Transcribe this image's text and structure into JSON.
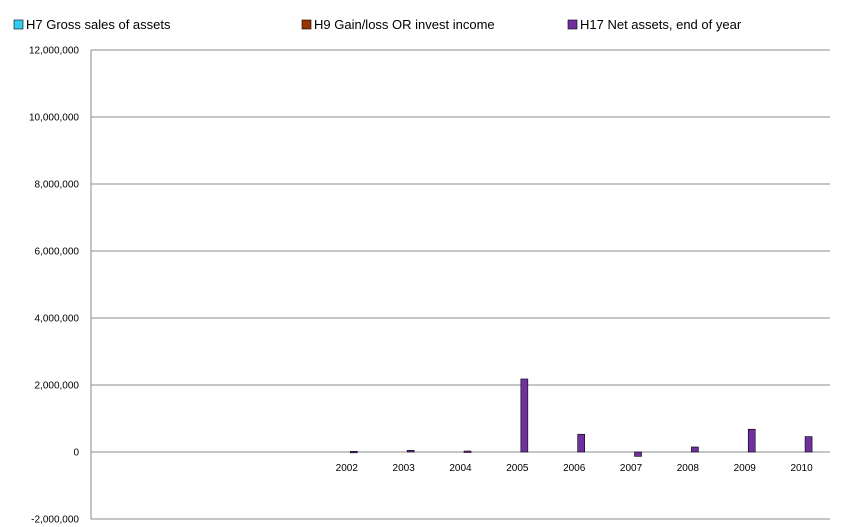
{
  "chart_data": {
    "type": "bar",
    "categories": [
      "2002",
      "2003",
      "2004",
      "2005",
      "2006",
      "2007",
      "2008",
      "2009",
      "2010"
    ],
    "category_slots": 13,
    "category_offset": 4,
    "series": [
      {
        "name": "H7 Gross sales of assets",
        "color": "#33CCEE",
        "values": [
          0,
          0,
          0,
          0,
          0,
          0,
          0,
          0,
          0
        ]
      },
      {
        "name": "H9 Gain/loss OR invest income",
        "color": "#993300",
        "values": [
          0,
          0,
          0,
          0,
          0,
          0,
          0,
          0,
          0
        ]
      },
      {
        "name": "H17 Net assets, end of year",
        "color": "#7030A0",
        "values": [
          20000,
          50000,
          30000,
          2180000,
          530000,
          -130000,
          150000,
          680000,
          460000
        ]
      }
    ],
    "y_ticks": [
      "12,000,000",
      "10,000,000",
      "8,000,000",
      "6,000,000",
      "4,000,000",
      "2,000,000",
      "0",
      "-2,000,000"
    ],
    "ylim": [
      -2000000,
      12000000
    ],
    "y_step": 2000000,
    "grid": true,
    "legend_position": "top",
    "title": "",
    "xlabel": "",
    "ylabel": ""
  }
}
